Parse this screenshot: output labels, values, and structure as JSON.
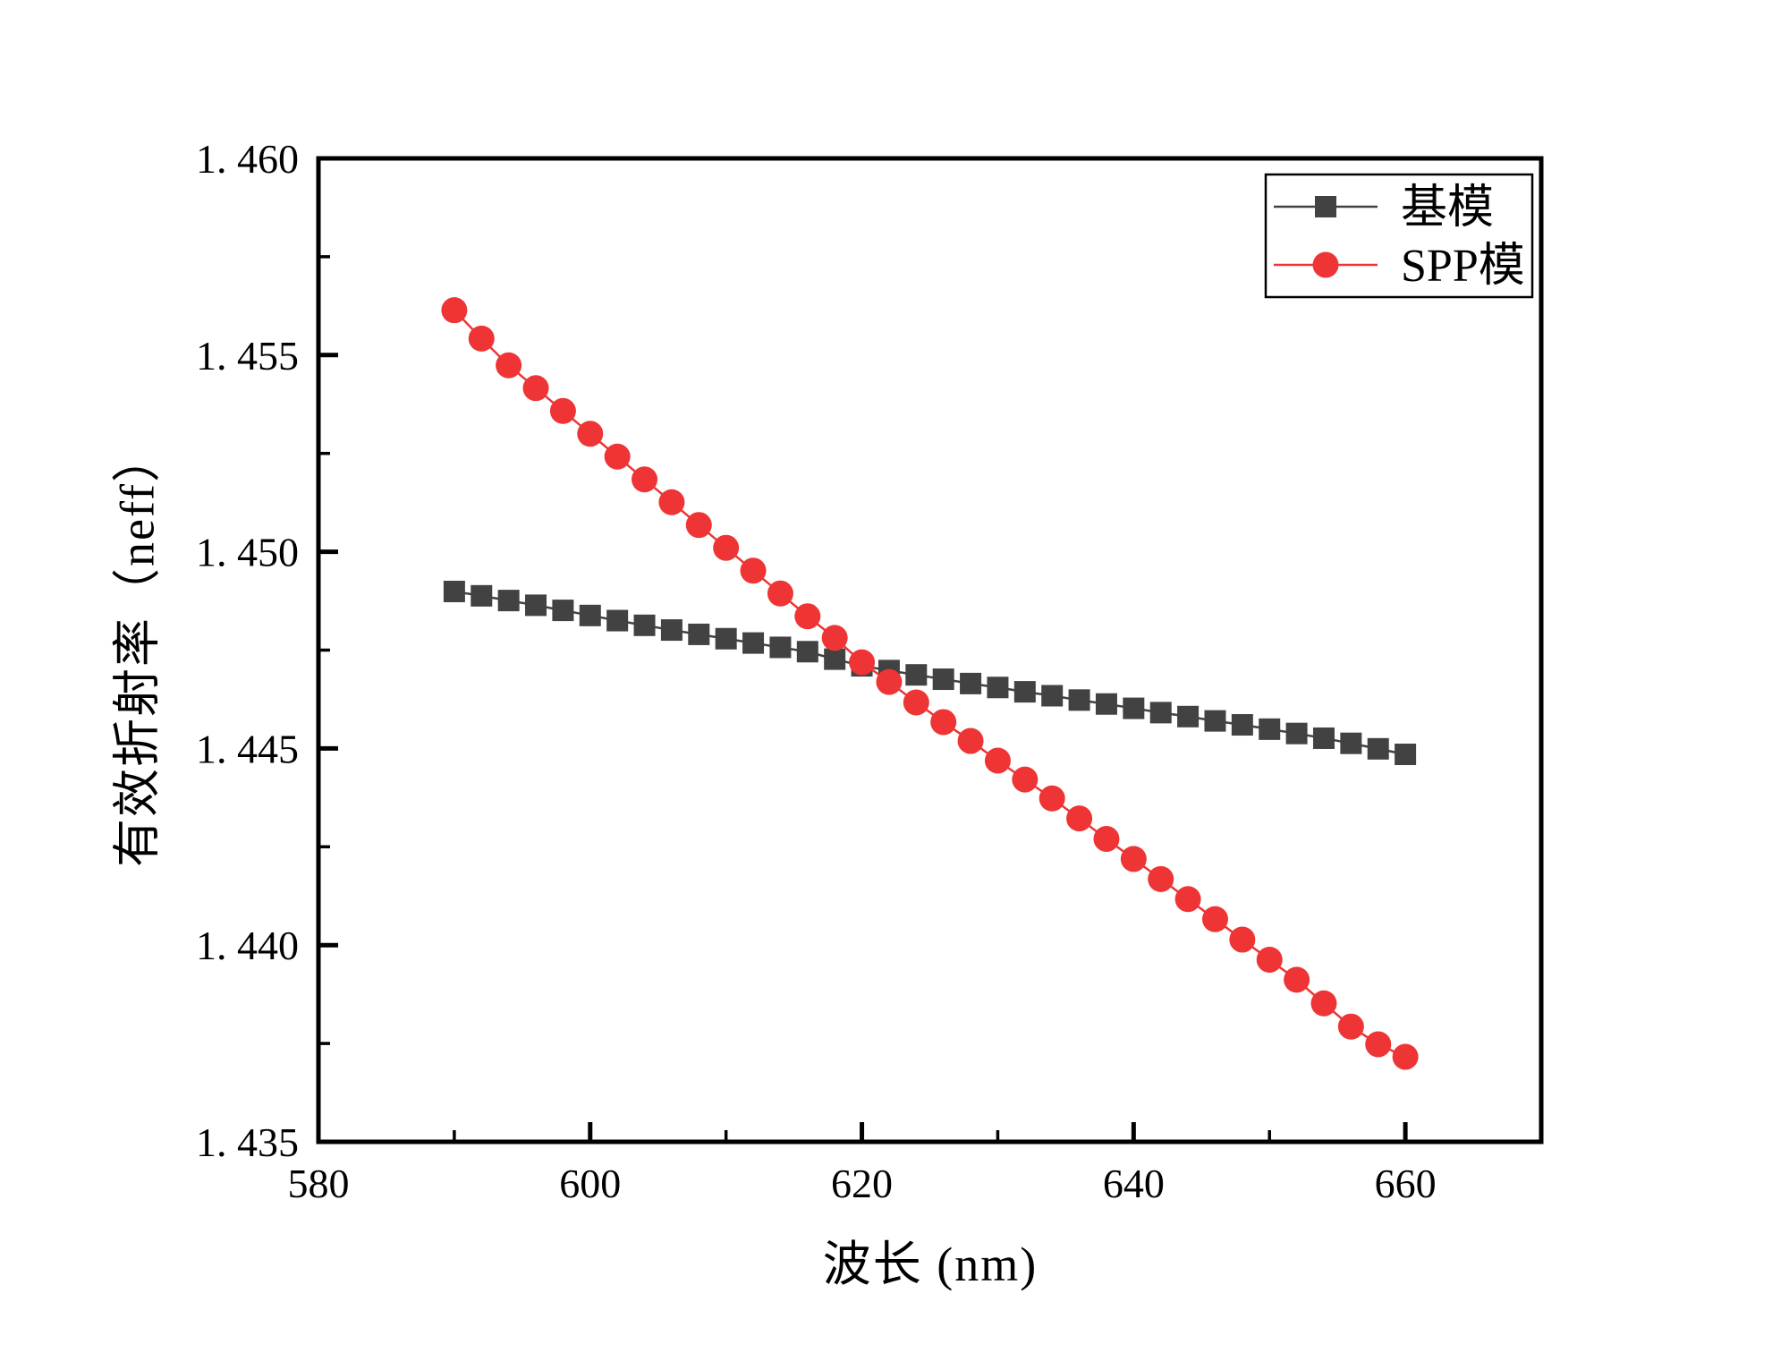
{
  "figure": {
    "background": "#ffffff",
    "axis_color": "#000000"
  },
  "chart_data": {
    "type": "line",
    "title": "",
    "xlabel": "波长 (nm)",
    "ylabel": "有效折射率（neff）",
    "xlim": [
      580,
      670
    ],
    "ylim": [
      1.435,
      1.46
    ],
    "grid": false,
    "legend_position": "top-right",
    "x_ticks": {
      "major": [
        580,
        600,
        620,
        640,
        660
      ],
      "minor": [
        590,
        610,
        630,
        650,
        670
      ],
      "labels": [
        "580",
        "600",
        "620",
        "640",
        "660"
      ]
    },
    "y_ticks": {
      "major": [
        1.435,
        1.44,
        1.445,
        1.45,
        1.455,
        1.46
      ],
      "minor": [
        1.4375,
        1.4425,
        1.4475,
        1.4525,
        1.4575
      ],
      "labels": [
        "1. 435",
        "1. 440",
        "1. 445",
        "1. 450",
        "1. 455",
        "1. 460"
      ]
    },
    "x": [
      590,
      592,
      594,
      596,
      598,
      600,
      602,
      604,
      606,
      608,
      610,
      612,
      614,
      616,
      618,
      620,
      622,
      624,
      626,
      628,
      630,
      632,
      634,
      636,
      638,
      640,
      642,
      644,
      646,
      648,
      650,
      652,
      654,
      656,
      658,
      660
    ],
    "series": [
      {
        "name": "基模",
        "marker": "square",
        "color": "#424242",
        "marker_size": 24,
        "values": [
          1.44899,
          1.44888,
          1.44876,
          1.44864,
          1.44851,
          1.44838,
          1.44825,
          1.44813,
          1.44801,
          1.4479,
          1.44779,
          1.44768,
          1.44757,
          1.44746,
          1.44727,
          1.4471,
          1.44698,
          1.44687,
          1.44676,
          1.44665,
          1.44655,
          1.44644,
          1.44634,
          1.44623,
          1.44613,
          1.44602,
          1.44591,
          1.44581,
          1.4457,
          1.4456,
          1.44549,
          1.44538,
          1.44526,
          1.44513,
          1.44499,
          1.44485
        ]
      },
      {
        "name": "SPP模",
        "marker": "circle",
        "color": "#ee3434",
        "marker_size": 29,
        "values": [
          1.45614,
          1.45542,
          1.45474,
          1.45416,
          1.45358,
          1.453,
          1.45242,
          1.45184,
          1.45126,
          1.45068,
          1.4501,
          1.44952,
          1.44894,
          1.44836,
          1.44781,
          1.44719,
          1.44669,
          1.44617,
          1.44567,
          1.44519,
          1.44469,
          1.44421,
          1.44373,
          1.44322,
          1.4427,
          1.44219,
          1.44168,
          1.44117,
          1.44066,
          1.44014,
          1.43963,
          1.43912,
          1.43852,
          1.43793,
          1.43748,
          1.43716
        ]
      }
    ]
  }
}
